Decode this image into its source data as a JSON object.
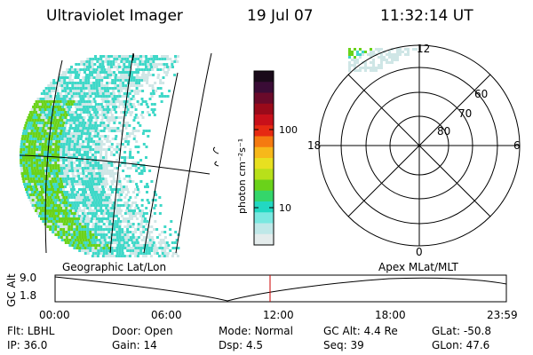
{
  "header": {
    "title": "Ultraviolet Imager",
    "date": "19 Jul 07",
    "time": "11:32:14 UT"
  },
  "colorbar": {
    "unit_label": "photon cm⁻²s⁻¹",
    "ticks": [
      "100",
      "10"
    ],
    "colors": [
      "#1a0a1a",
      "#3a0c36",
      "#6a0a2a",
      "#9a0a1a",
      "#c8101a",
      "#e62a12",
      "#f57a10",
      "#f7b81a",
      "#e8e020",
      "#b8e01a",
      "#6ad21a",
      "#34d66a",
      "#22d8c2",
      "#7ae8e0",
      "#bfe8e8",
      "#e4ecec"
    ]
  },
  "polar_plot": {
    "mlt_labels": [
      "12",
      "18",
      "6",
      "0"
    ],
    "lat_labels": [
      "60",
      "70",
      "80"
    ]
  },
  "altitude_panel": {
    "ylabel": "GC Alt",
    "y_ticks": [
      "9.0",
      "1.8"
    ],
    "left_title": "Geographic Lat/Lon",
    "right_title": "Apex  MLat/MLT",
    "x_ticks": [
      "00:00",
      "06:00",
      "12:00",
      "18:00",
      "23:59"
    ]
  },
  "info": {
    "row1": [
      {
        "label": "Flt:",
        "value": "LBHL"
      },
      {
        "label": "Door:",
        "value": "Open"
      },
      {
        "label": "Mode:",
        "value": "Normal"
      },
      {
        "label": "GC Alt:",
        "value": "4.4 Re"
      },
      {
        "label": "GLat:",
        "value": "-50.8"
      }
    ],
    "row2": [
      {
        "label": "IP:",
        "value": "36.0"
      },
      {
        "label": "Gain:",
        "value": "14"
      },
      {
        "label": "Dsp:",
        "value": "4.5"
      },
      {
        "label": "Seq:",
        "value": "39"
      },
      {
        "label": "GLon:",
        "value": "47.6"
      }
    ]
  },
  "colors": {
    "aurora_green": "#6ad21a",
    "aurora_cyan": "#3fd8c8",
    "aurora_pale": "#cfe6e6",
    "time_marker": "#cc0000"
  }
}
